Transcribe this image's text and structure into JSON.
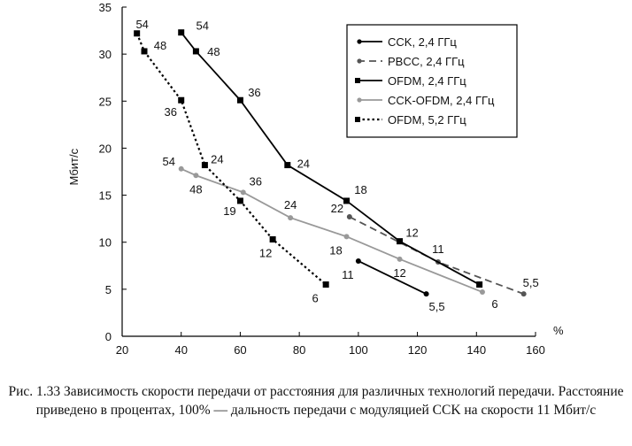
{
  "chart_data": {
    "type": "line",
    "ylabel": "Мбит/с",
    "xunit": "%",
    "xlim": [
      20,
      160
    ],
    "ylim": [
      0,
      35
    ],
    "xticks": [
      "20",
      "40",
      "60",
      "80",
      "100",
      "120",
      "140",
      "160"
    ],
    "yticks": [
      "0",
      "5",
      "10",
      "15",
      "20",
      "25",
      "30",
      "35"
    ],
    "grid": false,
    "legend_position": "top-right",
    "series": [
      {
        "name": "CCK, 2,4 ГГц",
        "style": "solid",
        "color": "#000000",
        "marker": "dot",
        "points": [
          [
            100,
            8
          ],
          [
            123,
            4.5
          ]
        ],
        "labels": [
          "11",
          "5,5"
        ]
      },
      {
        "name": "PBCC, 2,4 ГГц",
        "style": "dashed",
        "color": "#555555",
        "marker": "dot",
        "points": [
          [
            97,
            12.7
          ],
          [
            127,
            7.9
          ],
          [
            156,
            4.5
          ]
        ],
        "labels": [
          "22",
          "11",
          "5,5"
        ]
      },
      {
        "name": "OFDM, 2,4 ГГц",
        "style": "solid",
        "color": "#000000",
        "marker": "square",
        "points": [
          [
            40,
            32.3
          ],
          [
            45,
            30.3
          ],
          [
            60,
            25.1
          ],
          [
            76,
            18.2
          ],
          [
            96,
            14.4
          ],
          [
            114,
            10.1
          ],
          [
            141,
            5.5
          ]
        ],
        "labels": [
          "54",
          "48",
          "36",
          "24",
          "18",
          "12",
          ""
        ]
      },
      {
        "name": "CCK-OFDM, 2,4 ГГц",
        "style": "solid",
        "color": "#999999",
        "marker": "dot",
        "points": [
          [
            40,
            17.8
          ],
          [
            45,
            17.1
          ],
          [
            61,
            15.3
          ],
          [
            77,
            12.6
          ],
          [
            96,
            10.6
          ],
          [
            114,
            8.2
          ],
          [
            142,
            4.7
          ]
        ],
        "labels": [
          "54",
          "48",
          "36",
          "24",
          "18",
          "12",
          "6"
        ]
      },
      {
        "name": "OFDM, 5,2 ГГц",
        "style": "dotted",
        "color": "#000000",
        "marker": "square",
        "points": [
          [
            25,
            32.2
          ],
          [
            27.5,
            30.3
          ],
          [
            40,
            25.1
          ],
          [
            48,
            18.2
          ],
          [
            60,
            14.4
          ],
          [
            71,
            10.3
          ],
          [
            89,
            5.5
          ]
        ],
        "labels": [
          "54",
          "48",
          "36",
          "24",
          "19",
          "12",
          "6"
        ]
      }
    ]
  },
  "caption": "Рис. 1.33 Зависимость скорости передачи от расстояния для различных технологий передачи. Расстояние приведено в процентах, 100% — дальность передачи с модуляцией CCK на скорости 11 Мбит/с"
}
